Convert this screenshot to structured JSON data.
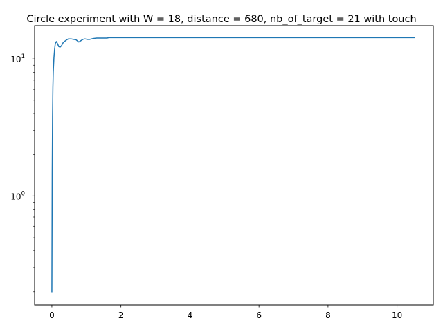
{
  "chart_data": {
    "type": "line",
    "title": "Circle experiment with W = 18, distance = 680, nb_of_target = 21 with touch",
    "xlabel": "",
    "ylabel": "",
    "xlim": [
      -0.5,
      11.05
    ],
    "ylim": [
      0.16,
      17.5
    ],
    "yscale": "log",
    "grid": false,
    "legend": "none",
    "x_ticks": [
      {
        "value": 0,
        "label": "0"
      },
      {
        "value": 2,
        "label": "2"
      },
      {
        "value": 4,
        "label": "4"
      },
      {
        "value": 6,
        "label": "6"
      },
      {
        "value": 8,
        "label": "8"
      },
      {
        "value": 10,
        "label": "10"
      }
    ],
    "y_ticks": [
      {
        "value": 1,
        "label": "10",
        "exponent": "0"
      },
      {
        "value": 10,
        "label": "10",
        "exponent": "1"
      }
    ],
    "series": [
      {
        "color": "#1f77b4",
        "x": [
          0.0,
          0.01,
          0.02,
          0.03,
          0.04,
          0.06,
          0.08,
          0.1,
          0.13,
          0.16,
          0.2,
          0.24,
          0.28,
          0.33,
          0.38,
          0.43,
          0.48,
          0.52,
          0.56,
          0.62,
          0.7,
          0.78,
          0.84,
          0.9,
          0.96,
          1.02,
          1.1,
          1.2,
          1.3,
          1.45,
          1.6,
          1.65,
          1.75,
          1.9,
          2.0,
          3.0,
          4.0,
          5.0,
          6.0,
          7.0,
          8.0,
          9.0,
          10.0,
          10.5
        ],
        "y": [
          0.2,
          1.5,
          3.8,
          6.2,
          8.0,
          10.2,
          11.8,
          13.0,
          13.4,
          13.0,
          12.3,
          12.2,
          12.5,
          13.2,
          13.5,
          13.8,
          14.0,
          14.0,
          14.0,
          13.9,
          13.8,
          13.3,
          13.6,
          13.9,
          14.0,
          13.9,
          13.9,
          14.1,
          14.2,
          14.2,
          14.2,
          14.3,
          14.3,
          14.3,
          14.3,
          14.3,
          14.3,
          14.3,
          14.3,
          14.3,
          14.3,
          14.3,
          14.3,
          14.3
        ]
      }
    ]
  }
}
